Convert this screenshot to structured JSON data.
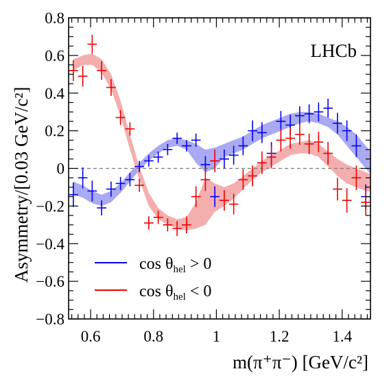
{
  "chart_data": {
    "type": "scatter",
    "xlabel": "m(π⁺π⁻) [GeV/c²]",
    "ylabel": "Asymmetry/[0.03 GeV/c²]",
    "xlim": [
      0.53,
      1.49
    ],
    "ylim": [
      -0.8,
      0.8
    ],
    "x_ticks": [
      0.6,
      0.8,
      1.0,
      1.2,
      1.4
    ],
    "x_tick_labels": [
      "0.6",
      "0.8",
      "1",
      "1.2",
      "1.4"
    ],
    "y_ticks": [
      -0.8,
      -0.6,
      -0.4,
      -0.2,
      0.0,
      0.2,
      0.4,
      0.6,
      0.8
    ],
    "y_tick_labels": [
      "−0.8",
      "−0.6",
      "−0.4",
      "−0.2",
      "0",
      "0.2",
      "0.4",
      "0.6",
      "0.8"
    ],
    "annotation": "LHCb",
    "zero_line": true,
    "legend": {
      "position": "bottom-left",
      "entries": [
        {
          "prefix": "cos θ",
          "sub": "hel",
          "suffix": " > 0"
        },
        {
          "prefix": "cos θ",
          "sub": "hel",
          "suffix": " < 0"
        }
      ]
    },
    "series": [
      {
        "color": "#0000ee",
        "band_color": "#9a9af2",
        "xerr": 0.015,
        "points": [
          {
            "x": 0.545,
            "y": -0.14,
            "e": 0.065
          },
          {
            "x": 0.575,
            "y": -0.05,
            "e": 0.055
          },
          {
            "x": 0.605,
            "y": -0.12,
            "e": 0.055
          },
          {
            "x": 0.635,
            "y": -0.21,
            "e": 0.04
          },
          {
            "x": 0.665,
            "y": -0.11,
            "e": 0.04
          },
          {
            "x": 0.695,
            "y": -0.08,
            "e": 0.035
          },
          {
            "x": 0.725,
            "y": -0.06,
            "e": 0.035
          },
          {
            "x": 0.755,
            "y": 0.01,
            "e": 0.03
          },
          {
            "x": 0.785,
            "y": 0.04,
            "e": 0.03
          },
          {
            "x": 0.815,
            "y": 0.06,
            "e": 0.03
          },
          {
            "x": 0.845,
            "y": 0.1,
            "e": 0.03
          },
          {
            "x": 0.875,
            "y": 0.16,
            "e": 0.03
          },
          {
            "x": 0.905,
            "y": 0.12,
            "e": 0.03
          },
          {
            "x": 0.935,
            "y": 0.15,
            "e": 0.035
          },
          {
            "x": 0.965,
            "y": 0.02,
            "e": 0.045
          },
          {
            "x": 0.995,
            "y": -0.15,
            "e": 0.055
          },
          {
            "x": 1.025,
            "y": 0.05,
            "e": 0.05
          },
          {
            "x": 1.055,
            "y": 0.07,
            "e": 0.05
          },
          {
            "x": 1.085,
            "y": 0.12,
            "e": 0.05
          },
          {
            "x": 1.115,
            "y": 0.2,
            "e": 0.055
          },
          {
            "x": 1.145,
            "y": 0.19,
            "e": 0.055
          },
          {
            "x": 1.175,
            "y": 0.08,
            "e": 0.06
          },
          {
            "x": 1.205,
            "y": 0.25,
            "e": 0.055
          },
          {
            "x": 1.235,
            "y": 0.23,
            "e": 0.055
          },
          {
            "x": 1.265,
            "y": 0.28,
            "e": 0.05
          },
          {
            "x": 1.295,
            "y": 0.29,
            "e": 0.05
          },
          {
            "x": 1.325,
            "y": 0.3,
            "e": 0.05
          },
          {
            "x": 1.355,
            "y": 0.32,
            "e": 0.05
          },
          {
            "x": 1.385,
            "y": 0.24,
            "e": 0.055
          },
          {
            "x": 1.415,
            "y": 0.2,
            "e": 0.055
          },
          {
            "x": 1.445,
            "y": 0.12,
            "e": 0.06
          },
          {
            "x": 1.475,
            "y": -0.15,
            "e": 0.065
          }
        ],
        "band": [
          {
            "x": 0.545,
            "lo": -0.14,
            "hi": -0.07
          },
          {
            "x": 0.575,
            "lo": -0.155,
            "hi": -0.09
          },
          {
            "x": 0.605,
            "lo": -0.185,
            "hi": -0.12
          },
          {
            "x": 0.635,
            "lo": -0.2,
            "hi": -0.14
          },
          {
            "x": 0.665,
            "lo": -0.18,
            "hi": -0.12
          },
          {
            "x": 0.695,
            "lo": -0.13,
            "hi": -0.08
          },
          {
            "x": 0.725,
            "lo": -0.07,
            "hi": -0.02
          },
          {
            "x": 0.755,
            "lo": -0.01,
            "hi": 0.03
          },
          {
            "x": 0.785,
            "lo": 0.04,
            "hi": 0.08
          },
          {
            "x": 0.815,
            "lo": 0.08,
            "hi": 0.12
          },
          {
            "x": 0.845,
            "lo": 0.11,
            "hi": 0.15
          },
          {
            "x": 0.875,
            "lo": 0.12,
            "hi": 0.16
          },
          {
            "x": 0.905,
            "lo": 0.1,
            "hi": 0.15
          },
          {
            "x": 0.935,
            "lo": 0.03,
            "hi": 0.13
          },
          {
            "x": 0.965,
            "lo": -0.02,
            "hi": 0.1
          },
          {
            "x": 0.995,
            "lo": 0.0,
            "hi": 0.11
          },
          {
            "x": 1.025,
            "lo": 0.06,
            "hi": 0.13
          },
          {
            "x": 1.055,
            "lo": 0.08,
            "hi": 0.15
          },
          {
            "x": 1.085,
            "lo": 0.1,
            "hi": 0.17
          },
          {
            "x": 1.115,
            "lo": 0.13,
            "hi": 0.2
          },
          {
            "x": 1.145,
            "lo": 0.16,
            "hi": 0.23
          },
          {
            "x": 1.175,
            "lo": 0.18,
            "hi": 0.25
          },
          {
            "x": 1.205,
            "lo": 0.2,
            "hi": 0.27
          },
          {
            "x": 1.235,
            "lo": 0.22,
            "hi": 0.29
          },
          {
            "x": 1.265,
            "lo": 0.24,
            "hi": 0.3
          },
          {
            "x": 1.295,
            "lo": 0.25,
            "hi": 0.3
          },
          {
            "x": 1.325,
            "lo": 0.24,
            "hi": 0.29
          },
          {
            "x": 1.355,
            "lo": 0.22,
            "hi": 0.27
          },
          {
            "x": 1.385,
            "lo": 0.18,
            "hi": 0.25
          },
          {
            "x": 1.415,
            "lo": 0.12,
            "hi": 0.22
          },
          {
            "x": 1.445,
            "lo": 0.06,
            "hi": 0.18
          },
          {
            "x": 1.475,
            "lo": 0.0,
            "hi": 0.12
          },
          {
            "x": 1.49,
            "lo": -0.03,
            "hi": 0.09
          }
        ]
      },
      {
        "color": "#ee0000",
        "band_color": "#f2a0a0",
        "xerr": 0.015,
        "points": [
          {
            "x": 0.545,
            "y": 0.52,
            "e": 0.055
          },
          {
            "x": 0.575,
            "y": 0.49,
            "e": 0.055
          },
          {
            "x": 0.605,
            "y": 0.66,
            "e": 0.05
          },
          {
            "x": 0.635,
            "y": 0.52,
            "e": 0.05
          },
          {
            "x": 0.665,
            "y": 0.43,
            "e": 0.045
          },
          {
            "x": 0.695,
            "y": 0.27,
            "e": 0.04
          },
          {
            "x": 0.725,
            "y": 0.21,
            "e": 0.035
          },
          {
            "x": 0.755,
            "y": -0.09,
            "e": 0.035
          },
          {
            "x": 0.785,
            "y": -0.29,
            "e": 0.035
          },
          {
            "x": 0.815,
            "y": -0.26,
            "e": 0.035
          },
          {
            "x": 0.845,
            "y": -0.3,
            "e": 0.035
          },
          {
            "x": 0.875,
            "y": -0.32,
            "e": 0.04
          },
          {
            "x": 0.905,
            "y": -0.3,
            "e": 0.045
          },
          {
            "x": 0.935,
            "y": -0.15,
            "e": 0.055
          },
          {
            "x": 0.965,
            "y": -0.06,
            "e": 0.06
          },
          {
            "x": 0.995,
            "y": 0.04,
            "e": 0.06
          },
          {
            "x": 1.025,
            "y": -0.17,
            "e": 0.055
          },
          {
            "x": 1.055,
            "y": -0.19,
            "e": 0.055
          },
          {
            "x": 1.085,
            "y": -0.06,
            "e": 0.055
          },
          {
            "x": 1.115,
            "y": -0.04,
            "e": 0.055
          },
          {
            "x": 1.145,
            "y": 0.03,
            "e": 0.06
          },
          {
            "x": 1.175,
            "y": 0.06,
            "e": 0.06
          },
          {
            "x": 1.205,
            "y": 0.15,
            "e": 0.06
          },
          {
            "x": 1.235,
            "y": 0.16,
            "e": 0.055
          },
          {
            "x": 1.265,
            "y": 0.18,
            "e": 0.055
          },
          {
            "x": 1.295,
            "y": 0.13,
            "e": 0.055
          },
          {
            "x": 1.325,
            "y": 0.14,
            "e": 0.055
          },
          {
            "x": 1.355,
            "y": 0.08,
            "e": 0.06
          },
          {
            "x": 1.385,
            "y": -0.11,
            "e": 0.06
          },
          {
            "x": 1.415,
            "y": -0.17,
            "e": 0.065
          },
          {
            "x": 1.445,
            "y": -0.05,
            "e": 0.065
          },
          {
            "x": 1.475,
            "y": -0.18,
            "e": 0.07
          }
        ],
        "band": [
          {
            "x": 0.545,
            "lo": 0.52,
            "hi": 0.58
          },
          {
            "x": 0.575,
            "lo": 0.55,
            "hi": 0.6
          },
          {
            "x": 0.605,
            "lo": 0.55,
            "hi": 0.61
          },
          {
            "x": 0.635,
            "lo": 0.51,
            "hi": 0.58
          },
          {
            "x": 0.665,
            "lo": 0.42,
            "hi": 0.5
          },
          {
            "x": 0.695,
            "lo": 0.28,
            "hi": 0.36
          },
          {
            "x": 0.725,
            "lo": 0.1,
            "hi": 0.18
          },
          {
            "x": 0.755,
            "lo": -0.06,
            "hi": 0.01
          },
          {
            "x": 0.785,
            "lo": -0.2,
            "hi": -0.13
          },
          {
            "x": 0.815,
            "lo": -0.27,
            "hi": -0.21
          },
          {
            "x": 0.845,
            "lo": -0.3,
            "hi": -0.25
          },
          {
            "x": 0.875,
            "lo": -0.32,
            "hi": -0.27
          },
          {
            "x": 0.905,
            "lo": -0.33,
            "hi": -0.26
          },
          {
            "x": 0.935,
            "lo": -0.32,
            "hi": -0.18
          },
          {
            "x": 0.965,
            "lo": -0.3,
            "hi": -0.05
          },
          {
            "x": 0.995,
            "lo": -0.23,
            "hi": -0.08
          },
          {
            "x": 1.025,
            "lo": -0.2,
            "hi": -0.1
          },
          {
            "x": 1.055,
            "lo": -0.16,
            "hi": -0.08
          },
          {
            "x": 1.085,
            "lo": -0.11,
            "hi": -0.04
          },
          {
            "x": 1.115,
            "lo": -0.06,
            "hi": 0.0
          },
          {
            "x": 1.145,
            "lo": -0.02,
            "hi": 0.04
          },
          {
            "x": 1.175,
            "lo": 0.01,
            "hi": 0.07
          },
          {
            "x": 1.205,
            "lo": 0.04,
            "hi": 0.1
          },
          {
            "x": 1.235,
            "lo": 0.07,
            "hi": 0.13
          },
          {
            "x": 1.265,
            "lo": 0.08,
            "hi": 0.14
          },
          {
            "x": 1.295,
            "lo": 0.08,
            "hi": 0.15
          },
          {
            "x": 1.325,
            "lo": 0.06,
            "hi": 0.13
          },
          {
            "x": 1.355,
            "lo": 0.01,
            "hi": 0.09
          },
          {
            "x": 1.385,
            "lo": -0.04,
            "hi": 0.05
          },
          {
            "x": 1.415,
            "lo": -0.08,
            "hi": 0.02
          },
          {
            "x": 1.445,
            "lo": -0.1,
            "hi": 0.0
          },
          {
            "x": 1.475,
            "lo": -0.12,
            "hi": -0.02
          },
          {
            "x": 1.49,
            "lo": -0.12,
            "hi": -0.03
          }
        ]
      }
    ]
  }
}
